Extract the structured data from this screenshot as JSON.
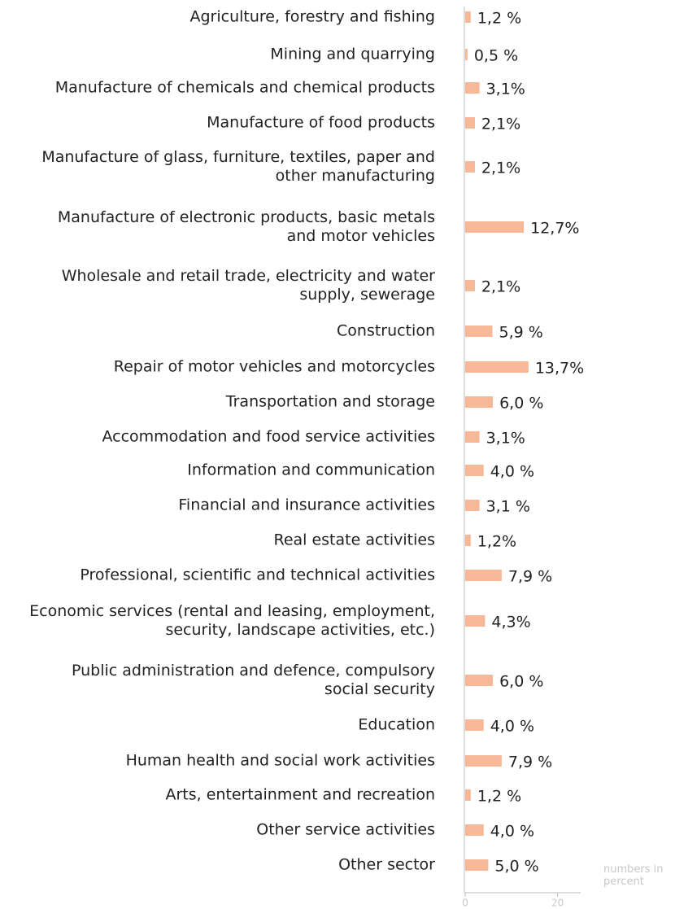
{
  "chart_data": {
    "type": "bar",
    "orientation": "horizontal",
    "categories": [
      "Agriculture, forestry and fishing",
      "Mining and quarrying",
      "Manufacture of chemicals and chemical products",
      "Manufacture of food products",
      "Manufacture of glass, furniture, textiles, paper and\nother manufacturing",
      "Manufacture of electronic products, basic metals\nand motor vehicles",
      "Wholesale and retail trade, electricity and water\nsupply, sewerage",
      "Construction",
      "Repair of motor vehicles and motorcycles",
      "Transportation and storage",
      "Accommodation and food service activities",
      "Information and communication",
      "Financial and insurance activities",
      "Real estate activities",
      "Professional, scientific and technical activities",
      "Economic services (rental and leasing, employment,\nsecurity, landscape activities, etc.)",
      "Public administration and defence, compulsory\nsocial security",
      "Education",
      "Human health and social work activities",
      "Arts, entertainment and recreation",
      "Other service activities",
      "Other sector"
    ],
    "values": [
      1.2,
      0.5,
      3.1,
      2.1,
      2.1,
      12.7,
      2.1,
      5.9,
      13.7,
      6.0,
      3.1,
      4.0,
      3.1,
      1.2,
      7.9,
      4.3,
      6.0,
      4.0,
      7.9,
      1.2,
      4.0,
      5.0
    ],
    "value_labels": [
      "1,2 %",
      "0,5 %",
      "3,1%",
      "2,1%",
      "2,1%",
      "12,7%",
      "2,1%",
      "5,9 %",
      "13,7%",
      "6,0 %",
      "3,1%",
      "4,0 %",
      "3,1 %",
      "1,2%",
      "7,9 %",
      "4,3%",
      "6,0 %",
      "4,0 %",
      "7,9 %",
      "1,2 %",
      "4,0 %",
      "5,0 %"
    ],
    "color": "#f6b896",
    "xlim": [
      0,
      25
    ],
    "xticks": [
      0,
      20
    ],
    "x_label": "numbers in\npercent"
  }
}
